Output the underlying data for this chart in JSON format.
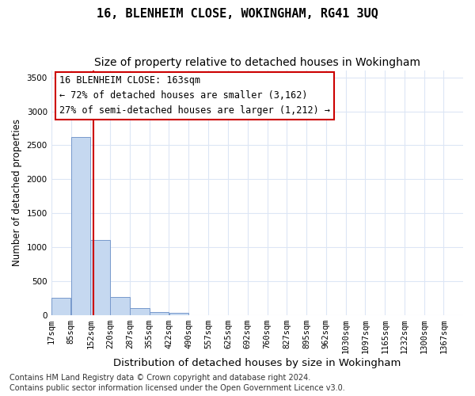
{
  "title1": "16, BLENHEIM CLOSE, WOKINGHAM, RG41 3UQ",
  "title2": "Size of property relative to detached houses in Wokingham",
  "xlabel": "Distribution of detached houses by size in Wokingham",
  "ylabel": "Number of detached properties",
  "bar_left_edges": [
    17,
    85,
    152,
    220,
    287,
    355,
    422,
    490,
    557,
    625,
    692,
    760,
    827,
    895,
    962,
    1030,
    1097,
    1165,
    1232,
    1300
  ],
  "bar_widths": [
    68,
    67,
    68,
    67,
    68,
    67,
    68,
    67,
    68,
    67,
    68,
    67,
    68,
    67,
    68,
    67,
    68,
    67,
    68,
    67
  ],
  "bar_heights": [
    255,
    2620,
    1100,
    265,
    100,
    50,
    28,
    0,
    0,
    0,
    0,
    0,
    0,
    0,
    0,
    0,
    0,
    0,
    0,
    0
  ],
  "bar_color": "#c5d8f0",
  "bar_edgecolor": "#7799cc",
  "ylim": [
    0,
    3600
  ],
  "yticks": [
    0,
    500,
    1000,
    1500,
    2000,
    2500,
    3000,
    3500
  ],
  "xtick_labels": [
    "17sqm",
    "85sqm",
    "152sqm",
    "220sqm",
    "287sqm",
    "355sqm",
    "422sqm",
    "490sqm",
    "557sqm",
    "625sqm",
    "692sqm",
    "760sqm",
    "827sqm",
    "895sqm",
    "962sqm",
    "1030sqm",
    "1097sqm",
    "1165sqm",
    "1232sqm",
    "1300sqm",
    "1367sqm"
  ],
  "xtick_positions": [
    17,
    85,
    152,
    220,
    287,
    355,
    422,
    490,
    557,
    625,
    692,
    760,
    827,
    895,
    962,
    1030,
    1097,
    1165,
    1232,
    1300,
    1367
  ],
  "vline_x": 163,
  "vline_color": "#cc0000",
  "annotation_line1": "16 BLENHEIM CLOSE: 163sqm",
  "annotation_line2": "← 72% of detached houses are smaller (3,162)",
  "annotation_line3": "27% of semi-detached houses are larger (1,212) →",
  "footer1": "Contains HM Land Registry data © Crown copyright and database right 2024.",
  "footer2": "Contains public sector information licensed under the Open Government Licence v3.0.",
  "background_color": "#ffffff",
  "grid_color": "#dce6f5",
  "title1_fontsize": 11,
  "title2_fontsize": 10,
  "xlabel_fontsize": 9.5,
  "ylabel_fontsize": 8.5,
  "tick_fontsize": 7.5,
  "annotation_fontsize": 8.5,
  "footer_fontsize": 7
}
